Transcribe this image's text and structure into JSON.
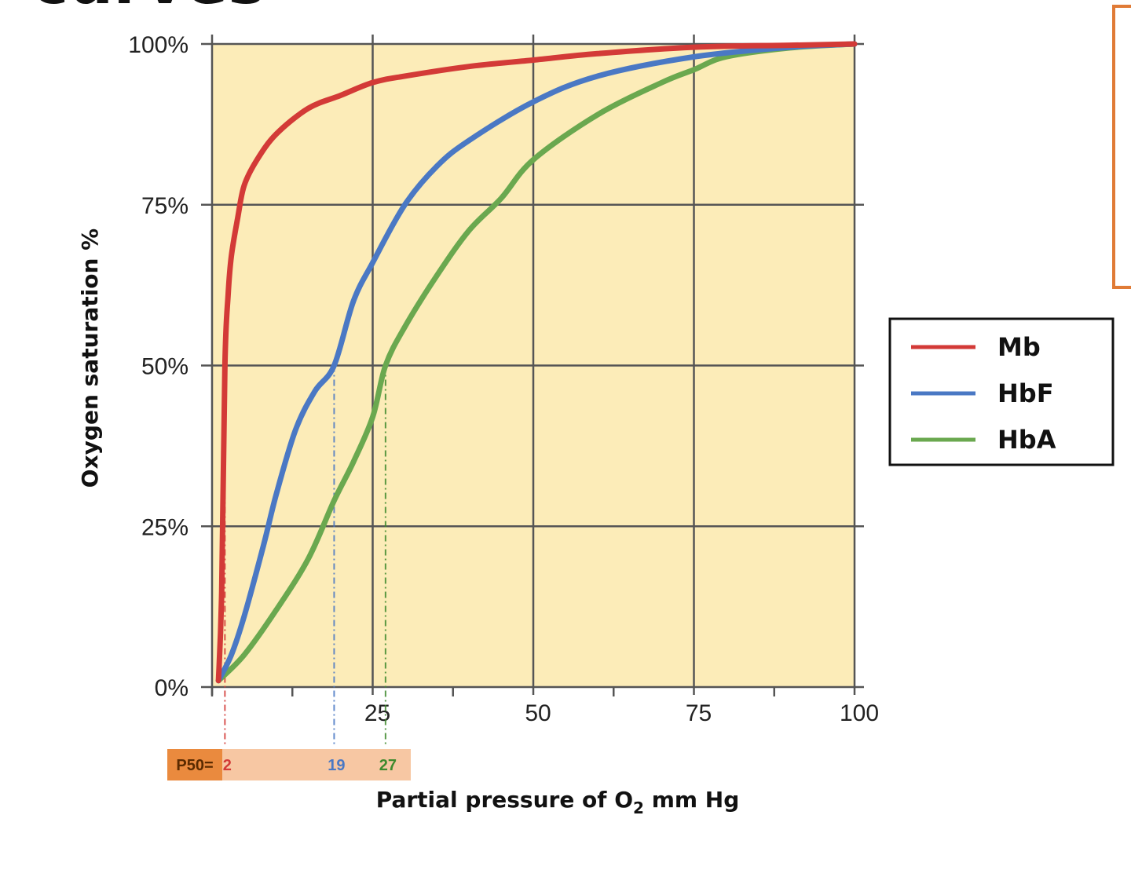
{
  "page": {
    "title_fragment": "curves"
  },
  "chart_data": {
    "type": "line",
    "xlabel_main": "Partial pressure of O",
    "xlabel_sub": "2",
    "xlabel_rest": " mm Hg",
    "ylabel": "Oxygen saturation %",
    "xlim": [
      0,
      100
    ],
    "ylim": [
      0,
      100
    ],
    "x_ticks": [
      {
        "value": 25,
        "label": "25"
      },
      {
        "value": 50,
        "label": "50"
      },
      {
        "value": 75,
        "label": "75"
      },
      {
        "value": 100,
        "label": "100"
      }
    ],
    "x_minor_ticks": [
      0,
      12.5,
      37.5,
      62.5,
      87.5
    ],
    "y_ticks": [
      {
        "value": 0,
        "label": "0%"
      },
      {
        "value": 25,
        "label": "25%"
      },
      {
        "value": 50,
        "label": "50%"
      },
      {
        "value": 75,
        "label": "75%"
      },
      {
        "value": 100,
        "label": "100%"
      }
    ],
    "grid": true,
    "plot_bg": "#fcecb8",
    "series": [
      {
        "name": "Mb",
        "color": "#d33a37",
        "x": [
          1,
          1.5,
          2,
          2.5,
          3,
          4,
          5,
          7,
          10,
          15,
          20,
          25,
          30,
          40,
          50,
          60,
          75,
          90,
          100
        ],
        "y": [
          1,
          15,
          50,
          61,
          67,
          73,
          78,
          82,
          86,
          90,
          92,
          94,
          95,
          96.5,
          97.5,
          98.5,
          99.5,
          99.8,
          100
        ]
      },
      {
        "name": "HbF",
        "color": "#4a78c4",
        "x": [
          1,
          3,
          5,
          8,
          10,
          13,
          16,
          19,
          22,
          25,
          30,
          35,
          40,
          50,
          60,
          75,
          90,
          100
        ],
        "y": [
          1,
          5,
          11,
          22,
          30,
          40,
          46,
          50,
          60,
          66,
          75,
          81,
          85,
          91,
          95,
          98,
          99.5,
          100
        ]
      },
      {
        "name": "HbA",
        "color": "#6aa84f",
        "x": [
          1,
          5,
          10,
          15,
          19,
          22,
          25,
          27,
          30,
          35,
          40,
          45,
          50,
          60,
          70,
          75,
          80,
          90,
          100
        ],
        "y": [
          1,
          5,
          12,
          20,
          29,
          35,
          42,
          50,
          56,
          64,
          71,
          76,
          82,
          89,
          94,
          96,
          98,
          99.4,
          100
        ]
      }
    ],
    "p50": {
      "label": "P50=",
      "values": [
        {
          "series": "Mb",
          "x": 2,
          "label": "2",
          "color": "#d33a37"
        },
        {
          "series": "HbF",
          "x": 19,
          "label": "19",
          "color": "#4a78c4"
        },
        {
          "series": "HbA",
          "x": 27,
          "label": "27",
          "color": "#3f8a2d"
        }
      ],
      "label_bg": "#ea8a3e",
      "values_bg": "#f7c7a3"
    },
    "legend": {
      "placement": "right",
      "entries": [
        "Mb",
        "HbF",
        "HbA"
      ]
    }
  },
  "colors": {
    "grid": "#555555",
    "outline_accent": "#e07b36"
  }
}
